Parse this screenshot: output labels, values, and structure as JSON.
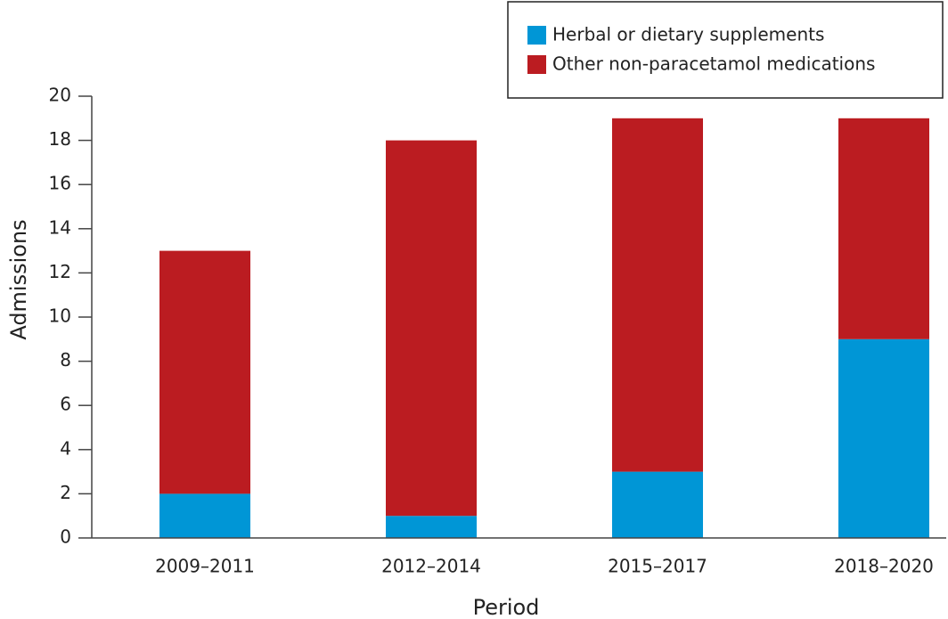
{
  "chart_data": {
    "type": "stacked-bar",
    "x_label": "Period",
    "y_label": "Admissions",
    "categories": [
      "2009–2011",
      "2012–2014",
      "2015–2017",
      "2018–2020"
    ],
    "series": [
      {
        "name": "Herbal or dietary supplements",
        "color": "#0096d6",
        "values": [
          2,
          1,
          3,
          9
        ]
      },
      {
        "name": "Other non-paracetamol medications",
        "color": "#bb1c21",
        "values": [
          11,
          17,
          16,
          10
        ]
      }
    ],
    "ylim": [
      0,
      20
    ],
    "yticks": [
      0,
      2,
      4,
      6,
      8,
      10,
      12,
      14,
      16,
      18,
      20
    ],
    "legend": "upper right"
  }
}
